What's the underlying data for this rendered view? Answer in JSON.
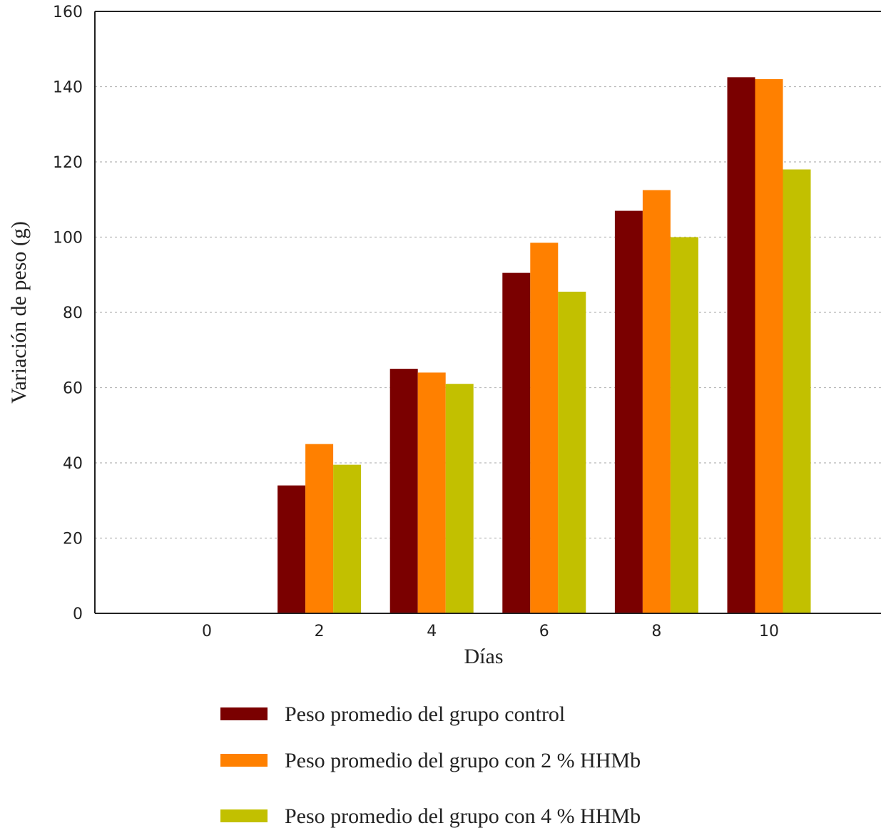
{
  "chart_data": {
    "type": "bar",
    "xlabel": "Días",
    "ylabel": "Variación de peso (g)",
    "categories": [
      "0",
      "2",
      "4",
      "6",
      "8",
      "10"
    ],
    "ylim": [
      0,
      160
    ],
    "yticks": [
      "0",
      "20",
      "40",
      "60",
      "80",
      "100",
      "120",
      "140",
      "160"
    ],
    "grid": true,
    "legend_position": "bottom",
    "series": [
      {
        "name": "Peso promedio del grupo control",
        "color": "#7a0000",
        "values": [
          0,
          34,
          65,
          90.5,
          107,
          142.5
        ]
      },
      {
        "name": "Peso promedio del grupo con 2 % HHMb",
        "color": "#ff8000",
        "values": [
          0,
          45,
          64,
          98.5,
          112.5,
          142
        ]
      },
      {
        "name": "Peso promedio del grupo con 4 % HHMb",
        "color": "#c2c000",
        "values": [
          0,
          39.5,
          61,
          85.5,
          100,
          118
        ]
      }
    ]
  }
}
